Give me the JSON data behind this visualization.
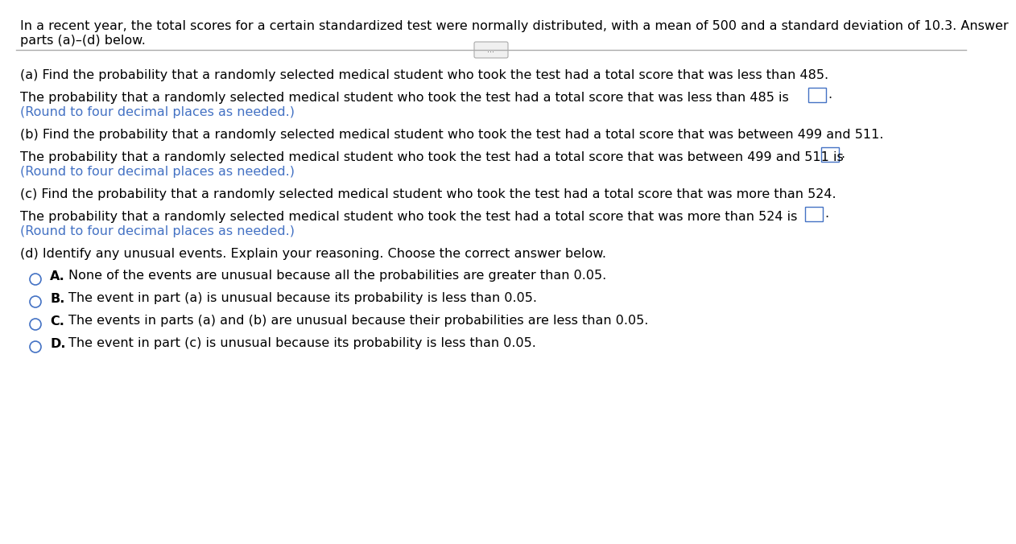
{
  "bg_color": "#ffffff",
  "text_color": "#000000",
  "blue_color": "#4472c4",
  "intro_text_line1": "In a recent year, the total scores for a certain standardized test were normally distributed, with a mean of 500 and a standard deviation of 10.3. Answer",
  "intro_text_line2": "parts (a)–(d) below.",
  "separator_dots": "...",
  "part_a_header": "(a) Find the probability that a randomly selected medical student who took the test had a total score that was less than 485.",
  "part_a_body": "The probability that a randomly selected medical student who took the test had a total score that was less than 485 is",
  "part_a_round": "(Round to four decimal places as needed.)",
  "part_b_header": "(b) Find the probability that a randomly selected medical student who took the test had a total score that was between 499 and 511.",
  "part_b_body": "The probability that a randomly selected medical student who took the test had a total score that was between 499 and 511 is",
  "part_b_round": "(Round to four decimal places as needed.)",
  "part_c_header": "(c) Find the probability that a randomly selected medical student who took the test had a total score that was more than 524.",
  "part_c_body": "The probability that a randomly selected medical student who took the test had a total score that was more than 524 is",
  "part_c_round": "(Round to four decimal places as needed.)",
  "part_d_header": "(d) Identify any unusual events. Explain your reasoning. Choose the correct answer below.",
  "option_a_label": "A.",
  "option_a_text": "None of the events are unusual because all the probabilities are greater than 0.05.",
  "option_b_label": "B.",
  "option_b_text": "The event in part (a) is unusual because its probability is less than 0.05.",
  "option_c_label": "C.",
  "option_c_text": "The events in parts (a) and (b) are unusual because their probabilities are less than 0.05.",
  "option_d_label": "D.",
  "option_d_text": "The event in part (c) is unusual because its probability is less than 0.05.",
  "font_size": 11.5,
  "font_size_small": 10.5
}
